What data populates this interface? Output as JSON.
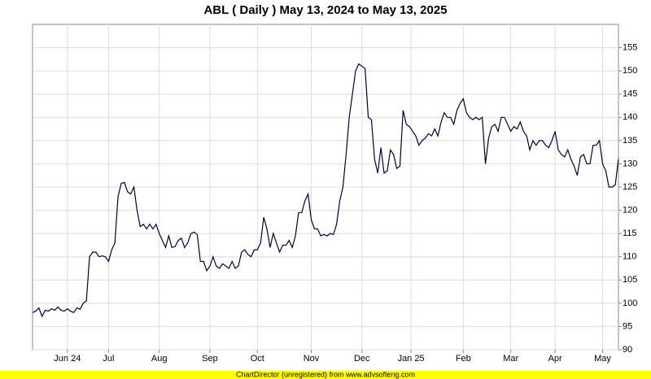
{
  "chart_data": {
    "type": "line",
    "title": "ABL ( Daily ) May 13, 2024 to May 13, 2025",
    "footer": "ChartDirector (unregistered) from www.advsofteng.com",
    "color": "#000040",
    "grid": true,
    "ylim": [
      90,
      160
    ],
    "yticks": [
      90,
      95,
      100,
      105,
      110,
      115,
      120,
      125,
      130,
      135,
      140,
      145,
      150,
      155
    ],
    "xticks": [
      {
        "value": 11,
        "label": "Jun 24"
      },
      {
        "value": 24,
        "label": "Jul"
      },
      {
        "value": 40,
        "label": "Aug"
      },
      {
        "value": 56,
        "label": "Sep"
      },
      {
        "value": 71,
        "label": "Oct"
      },
      {
        "value": 88,
        "label": "Nov"
      },
      {
        "value": 104,
        "label": "Dec"
      },
      {
        "value": 119.5,
        "label": "Jan 25"
      },
      {
        "value": 136,
        "label": "Feb"
      },
      {
        "value": 151,
        "label": "Mar"
      },
      {
        "value": 165,
        "label": "Apr"
      },
      {
        "value": 180,
        "label": "May"
      }
    ],
    "values": [
      98,
      98.3,
      99,
      97.2,
      98.5,
      98.3,
      98.8,
      98.5,
      99.2,
      98.5,
      98.3,
      98.8,
      98.3,
      98,
      99,
      98.7,
      100,
      100.5,
      110,
      111,
      111,
      110,
      110.2,
      110,
      109,
      111.5,
      113,
      123,
      125.8,
      126,
      124,
      123.5,
      125,
      120,
      116.5,
      117,
      116,
      117,
      116,
      117,
      115,
      113.5,
      112,
      114.5,
      112,
      112.2,
      113.5,
      114,
      112,
      113,
      115,
      115.3,
      114.8,
      109,
      109,
      107,
      108,
      110,
      108,
      107.5,
      108.5,
      108,
      107.5,
      109,
      107.5,
      108,
      111,
      111.5,
      110.5,
      110,
      111.5,
      111.5,
      113,
      118.5,
      116,
      112,
      115,
      113,
      111,
      112.5,
      112.5,
      113.5,
      112,
      114.5,
      119.5,
      119.5,
      122,
      123.5,
      118,
      116,
      116,
      114.5,
      114.8,
      114.5,
      115,
      114.8,
      117,
      122,
      125,
      132,
      140,
      145,
      150,
      151.5,
      151,
      150.5,
      140,
      139.5,
      131,
      128,
      133.5,
      128,
      128.5,
      133,
      132,
      129,
      129.5,
      141.5,
      138.5,
      138,
      137,
      136,
      134,
      135,
      135.5,
      136.5,
      136,
      137.5,
      136,
      139,
      141,
      140,
      140,
      138.5,
      141.5,
      143,
      144,
      141,
      140,
      139.5,
      140,
      139.5,
      140,
      130,
      135.5,
      138,
      138.5,
      137,
      140,
      140,
      138.5,
      137,
      138,
      137.5,
      139,
      137,
      136,
      133,
      135,
      134,
      135,
      135,
      134,
      133.5,
      135,
      137,
      133,
      132,
      131.5,
      133,
      131,
      129.5,
      127.5,
      131.5,
      132,
      130,
      130,
      134,
      134,
      135,
      130,
      128.5,
      125,
      125,
      125.5,
      131
    ]
  }
}
